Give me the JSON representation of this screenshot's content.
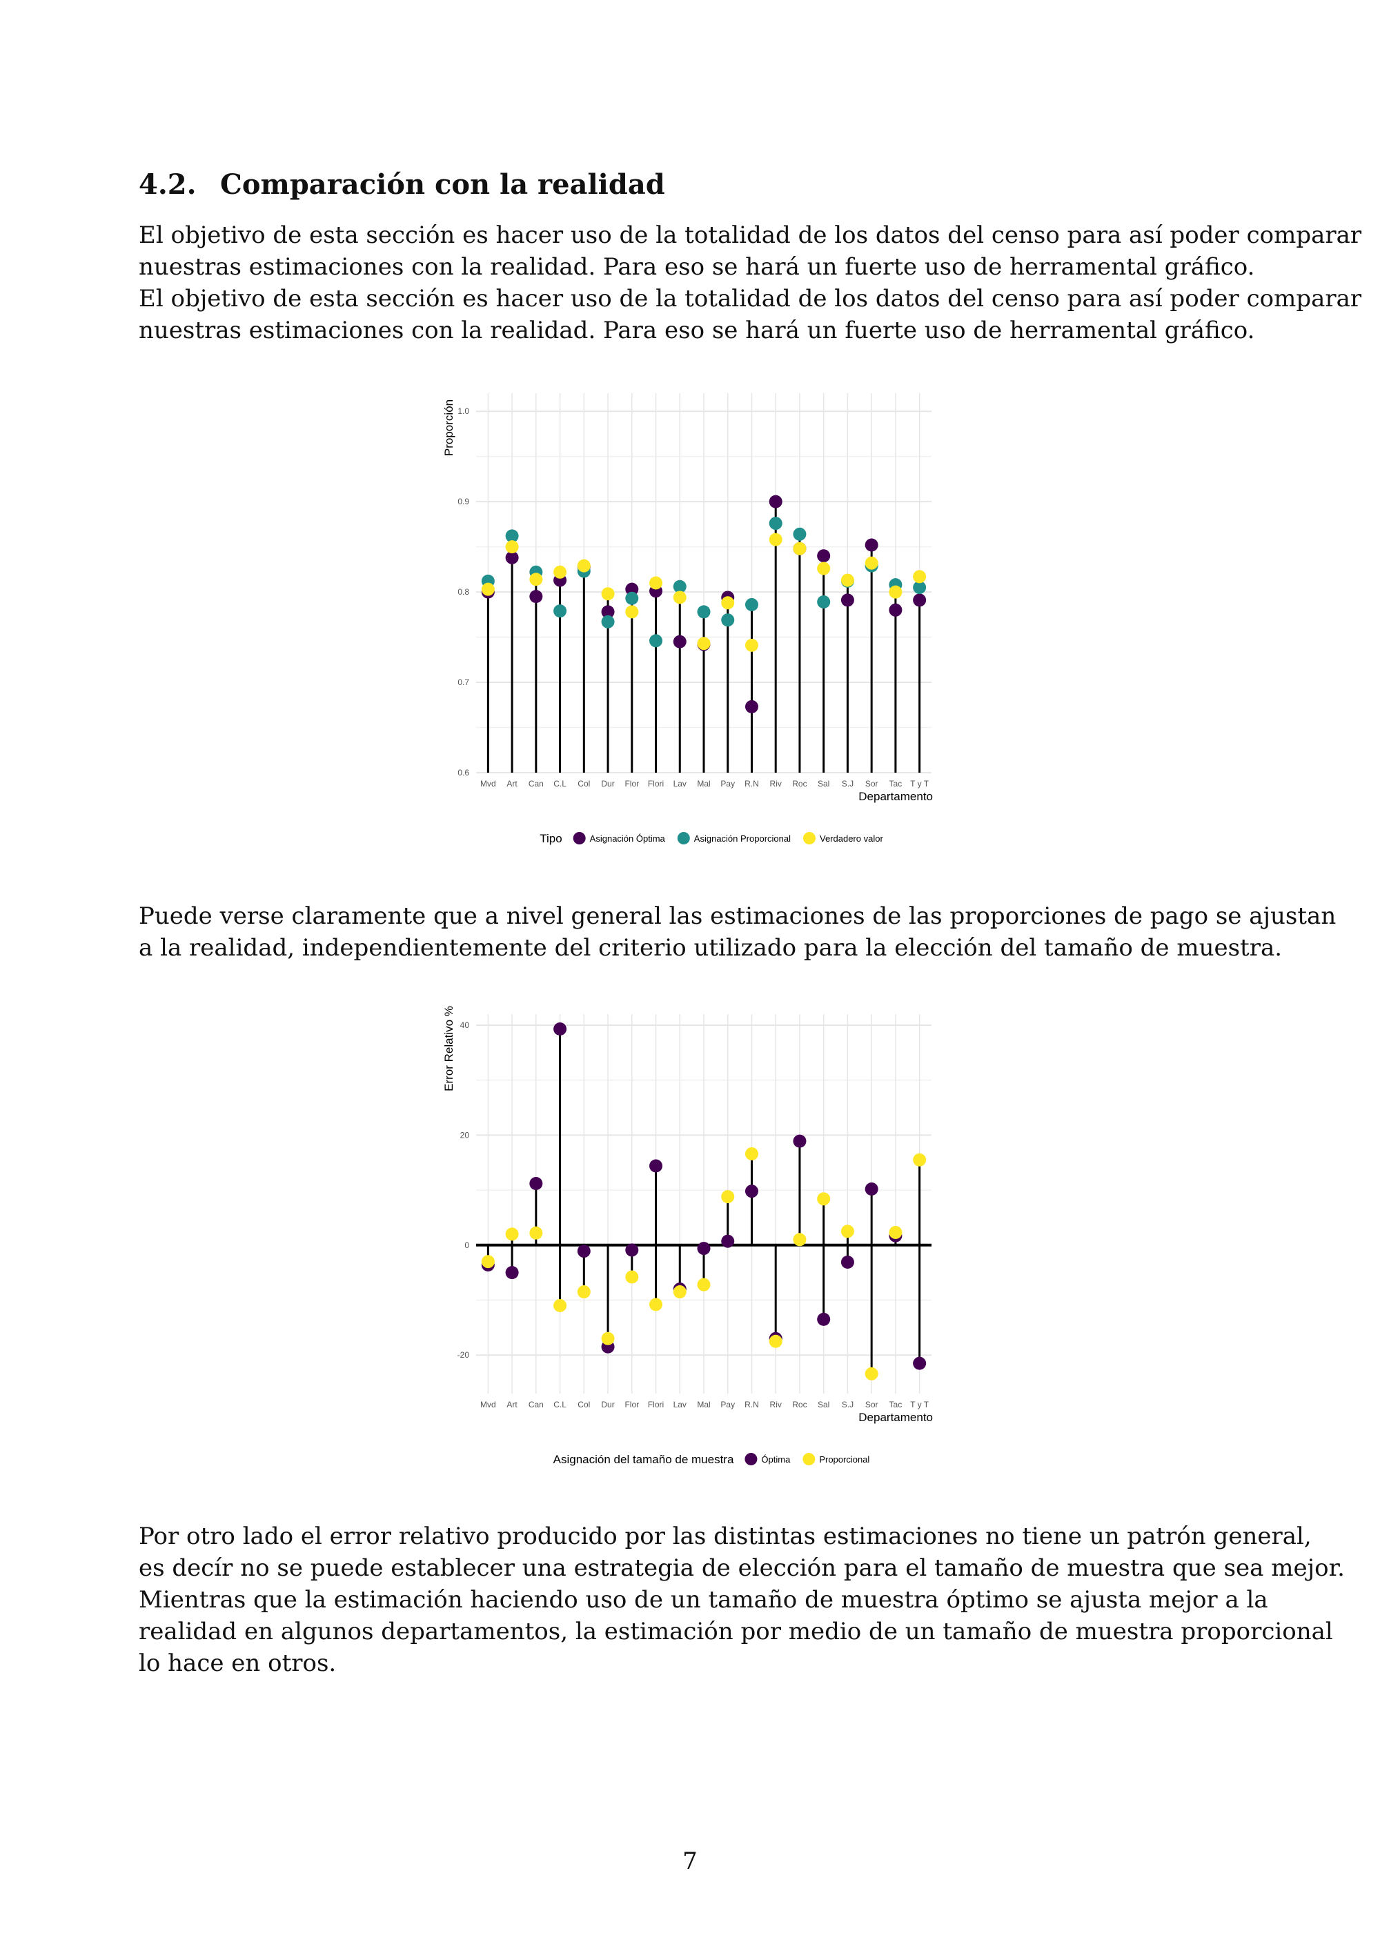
{
  "section": {
    "number": "4.2.",
    "title": "Comparación con la realidad"
  },
  "paragraphs": {
    "intro": [
      "El objetivo de esta sección es hacer uso de la totalidad de los datos del censo para así poder comparar",
      "nuestras estimaciones con la realidad. Para eso se hará un fuerte uso de herramental gráfico.",
      "El objetivo de esta sección es hacer uso de la totalidad de los datos del censo para así poder comparar",
      "nuestras estimaciones con la realidad. Para eso se hará un fuerte uso de herramental gráfico."
    ],
    "middle": [
      "Puede verse claramente que a nivel general las estimaciones de las proporciones de pago se ajustan",
      "a la realidad, independientemente del criterio utilizado para la elección del tamaño de muestra."
    ],
    "closing": [
      "Por otro lado el error relativo producido por las distintas estimaciones no tiene un patrón general,",
      "es decír no se puede establecer una estrategia de elección para el tamaño de muestra que sea mejor.",
      "Mientras que la estimación haciendo uso de un tamaño de muestra óptimo se ajusta mejor a la",
      "realidad en algunos departamentos, la estimación por medio de un tamaño de muestra proporcional",
      "lo hace en otros."
    ]
  },
  "page_number": "7",
  "colors": {
    "optima": "#440154",
    "proporcional": "#21908C",
    "verdadero": "#FDE725",
    "grid": "#e6e6e6",
    "axis_text": "#555555"
  },
  "chart_data": [
    {
      "type": "scatter",
      "style": "lollipop",
      "ylabel": "Proporción",
      "xlabel": "Departamento",
      "ylim": [
        0.6,
        1.02
      ],
      "yticks": [
        0.6,
        0.7,
        0.8,
        0.9,
        1.0
      ],
      "ytick_labels": [
        "0.6",
        "0.7",
        "0.8",
        "0.9",
        "1.0"
      ],
      "baseline": 0.6,
      "grid": true,
      "legend_position": "bottom",
      "legend_title": "Tipo",
      "categories": [
        "Mvd",
        "Art",
        "Can",
        "C.L",
        "Col",
        "Dur",
        "Flor",
        "Flori",
        "Lav",
        "Mal",
        "Pay",
        "R.N",
        "Riv",
        "Roc",
        "Sal",
        "S.J",
        "Sor",
        "Tac",
        "T y T"
      ],
      "series": [
        {
          "name": "Asignación Óptima",
          "color": "#440154",
          "values": [
            0.8,
            0.838,
            0.795,
            0.813,
            0.828,
            0.778,
            0.803,
            0.801,
            0.745,
            0.742,
            0.794,
            0.673,
            0.9,
            0.848,
            0.84,
            0.791,
            0.852,
            0.78,
            0.791
          ]
        },
        {
          "name": "Asignación Proporcional",
          "color": "#21908C",
          "values": [
            0.812,
            0.862,
            0.822,
            0.779,
            0.823,
            0.767,
            0.793,
            0.746,
            0.806,
            0.778,
            0.769,
            0.786,
            0.876,
            0.864,
            0.789,
            0.812,
            0.829,
            0.808,
            0.805
          ]
        },
        {
          "name": "Verdadero valor",
          "color": "#FDE725",
          "values": [
            0.803,
            0.85,
            0.814,
            0.822,
            0.829,
            0.798,
            0.778,
            0.81,
            0.794,
            0.743,
            0.788,
            0.741,
            0.858,
            0.848,
            0.826,
            0.813,
            0.832,
            0.8,
            0.817
          ]
        }
      ]
    },
    {
      "type": "scatter",
      "style": "lollipop",
      "ylabel": "Error Relativo %",
      "xlabel": "Departamento",
      "ylim": [
        -27,
        42
      ],
      "yticks": [
        -20,
        0,
        20,
        40
      ],
      "ytick_labels": [
        "-20",
        "0",
        "20",
        "40"
      ],
      "baseline": 0,
      "grid": true,
      "legend_position": "bottom",
      "legend_title": "Asignación del tamaño de muestra",
      "categories": [
        "Mvd",
        "Art",
        "Can",
        "C.L",
        "Col",
        "Dur",
        "Flor",
        "Flori",
        "Lav",
        "Mal",
        "Pay",
        "R.N",
        "Riv",
        "Roc",
        "Sal",
        "S.J",
        "Sor",
        "Tac",
        "T y T"
      ],
      "series": [
        {
          "name": "Óptima",
          "color": "#440154",
          "values": [
            -3.6,
            -5.0,
            11.2,
            39.3,
            -1.1,
            -18.5,
            -0.9,
            14.4,
            -8.0,
            -0.6,
            0.7,
            9.8,
            -17.0,
            18.9,
            -13.5,
            -3.1,
            10.2,
            1.7,
            -21.5
          ]
        },
        {
          "name": "Proporcional",
          "color": "#FDE725",
          "values": [
            -3.0,
            2.0,
            2.2,
            -11.0,
            -8.5,
            -17.0,
            -5.8,
            -10.8,
            -8.5,
            -7.2,
            8.8,
            16.6,
            -17.5,
            1.0,
            8.4,
            2.5,
            -23.4,
            2.3,
            15.5
          ]
        }
      ]
    }
  ]
}
